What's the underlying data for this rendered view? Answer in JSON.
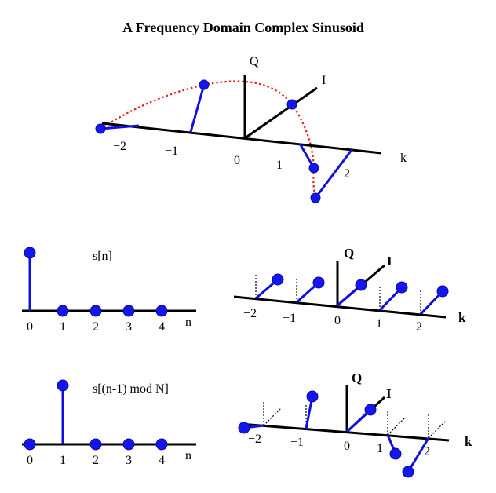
{
  "title": "A Frequency Domain Complex Sinusoid",
  "top_panel": {
    "axis_q": "Q",
    "axis_i": "I",
    "axis_k": "k",
    "tick_labels": [
      "−2",
      "−1",
      "0",
      "1",
      "2"
    ]
  },
  "signal_s": {
    "label": "s[n]",
    "axis_n": "n",
    "tick_labels": [
      "0",
      "1",
      "2",
      "3",
      "4"
    ]
  },
  "spectrum_s": {
    "axis_q": "Q",
    "axis_i": "I",
    "axis_k": "k",
    "tick_labels": [
      "−2",
      "−1",
      "0",
      "1",
      "2"
    ]
  },
  "signal_shifted": {
    "label": "s[(n-1) mod N]",
    "axis_n": "n",
    "tick_labels": [
      "0",
      "1",
      "2",
      "3",
      "4"
    ]
  },
  "spectrum_shifted": {
    "axis_q": "Q",
    "axis_i": "I",
    "axis_k": "k",
    "tick_labels": [
      "−2",
      "−1",
      "0",
      "1",
      "2"
    ]
  },
  "colors": {
    "stem": "#1010e0",
    "curve": "#e02020",
    "axis": "#000000"
  }
}
